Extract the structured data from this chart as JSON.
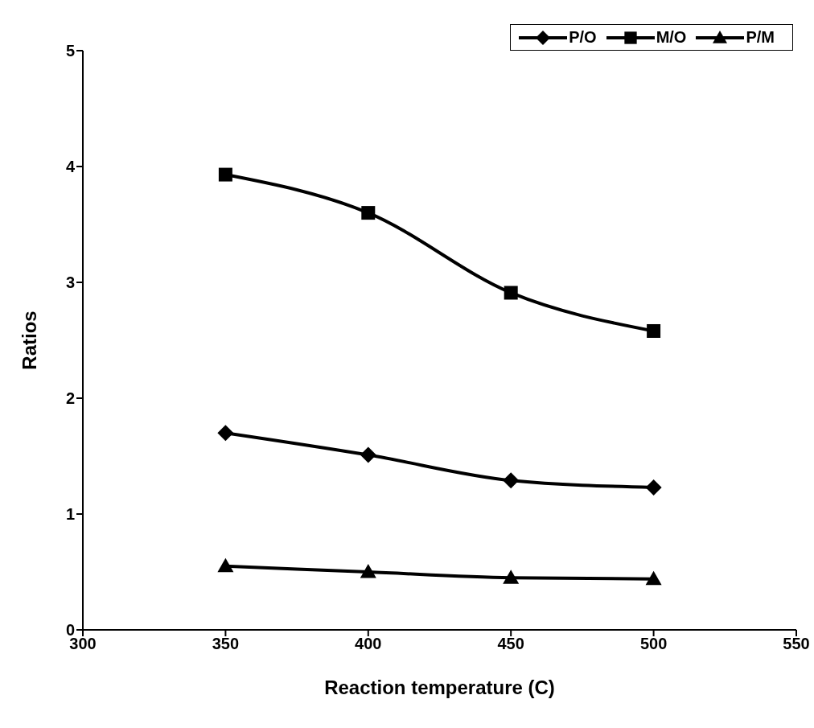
{
  "chart_data": {
    "type": "line",
    "xlabel": "Reaction temperature (C)",
    "ylabel": "Ratios",
    "x": [
      350,
      400,
      450,
      500
    ],
    "series": [
      {
        "name": "P/O",
        "color": "#000000",
        "marker": "diamond",
        "values": [
          1.7,
          1.51,
          1.29,
          1.23
        ]
      },
      {
        "name": "M/O",
        "color": "#000000",
        "marker": "square",
        "values": [
          3.93,
          3.6,
          2.91,
          2.58
        ]
      },
      {
        "name": "P/M",
        "color": "#000000",
        "marker": "triangle",
        "values": [
          0.55,
          0.5,
          0.45,
          0.44
        ]
      }
    ],
    "xlim": [
      300,
      550
    ],
    "xticks": [
      300,
      350,
      400,
      450,
      500,
      550
    ],
    "ylim": [
      0,
      5
    ],
    "yticks": [
      0,
      1,
      2,
      3,
      4,
      5
    ],
    "grid": false,
    "legend": "top right",
    "line_style": "solid"
  }
}
